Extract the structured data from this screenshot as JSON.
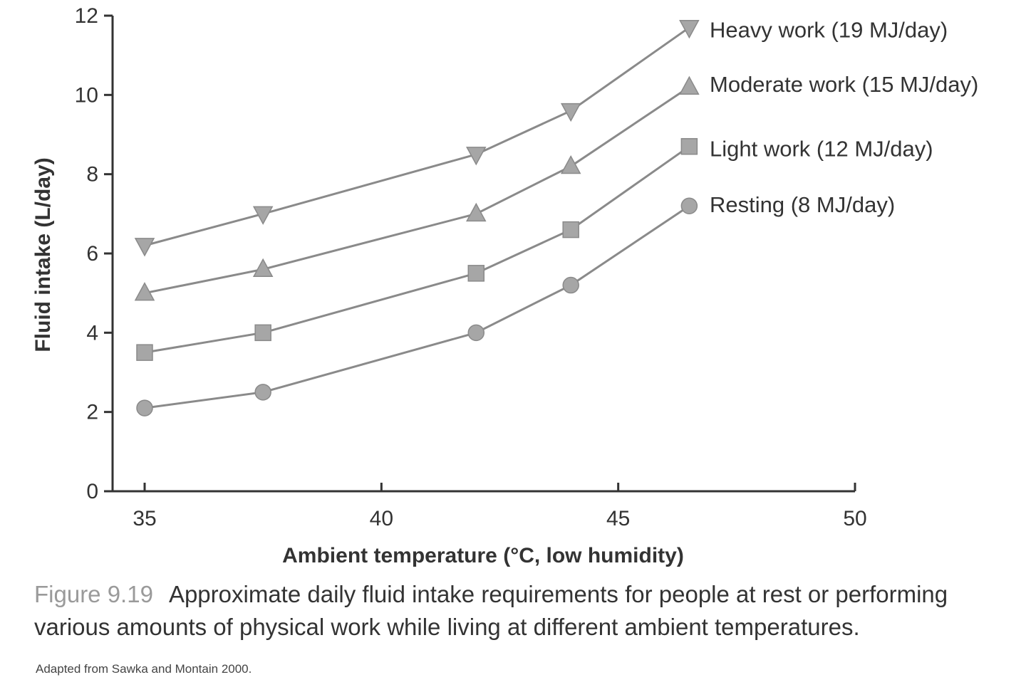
{
  "chart_data": {
    "type": "line",
    "xlabel": "Ambient temperature (°C, low humidity)",
    "ylabel": "Fluid intake (L/day)",
    "xlim": [
      34,
      50
    ],
    "ylim": [
      0,
      12
    ],
    "x_ticks": [
      "35",
      "40",
      "45",
      "50"
    ],
    "y_ticks": [
      "0",
      "2",
      "4",
      "6",
      "8",
      "10",
      "12"
    ],
    "grid": false,
    "legend": "labels at line ends (right)",
    "x": [
      35,
      37.5,
      42,
      44,
      46.5
    ],
    "series": [
      {
        "name": "Heavy work (19 MJ/day)",
        "marker": "triangle-down",
        "values": [
          6.2,
          7.0,
          8.5,
          9.6,
          11.7
        ]
      },
      {
        "name": "Moderate work (15 MJ/day)",
        "marker": "triangle-up",
        "values": [
          5.0,
          5.6,
          7.0,
          8.2,
          10.2
        ]
      },
      {
        "name": "Light work (12 MJ/day)",
        "marker": "square",
        "values": [
          3.5,
          4.0,
          5.5,
          6.6,
          8.7
        ]
      },
      {
        "name": "Resting (8 MJ/day)",
        "marker": "circle",
        "values": [
          2.1,
          2.5,
          4.0,
          5.2,
          7.2
        ]
      }
    ]
  },
  "caption": {
    "label": "Figure 9.19",
    "text": "Approximate daily fluid intake requirements for people at rest or performing various amounts of physical work while living at different ambient temperatures."
  },
  "source": "Adapted from Sawka and Montain 2000."
}
